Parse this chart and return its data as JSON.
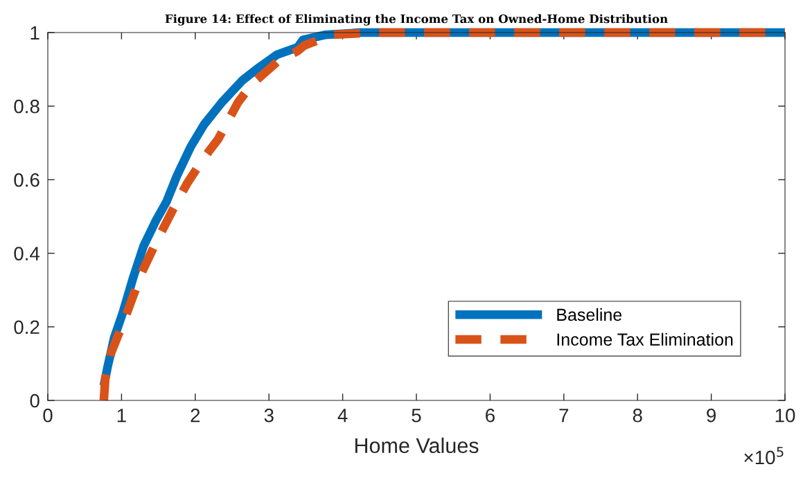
{
  "chart_data": {
    "type": "line",
    "title": "Figure 14: Effect of Eliminating the Income Tax on Owned-Home Distribution",
    "xlabel": "Home Values",
    "annotations": [
      "×10$^{5}$"
    ],
    "series": [
      {
        "name": "Baseline",
        "color": "#0072bd",
        "line_style": "solid",
        "x": [
          0.76,
          0.81,
          0.9,
          1.02,
          1.16,
          1.3,
          1.47,
          1.61,
          1.75,
          1.94,
          2.12,
          2.36,
          2.64,
          2.83,
          3.11,
          3.39,
          3.46,
          3.77,
          4.24,
          10
        ],
        "values": [
          0.04,
          0.09,
          0.17,
          0.24,
          0.335,
          0.42,
          0.49,
          0.54,
          0.61,
          0.69,
          0.75,
          0.81,
          0.87,
          0.9,
          0.94,
          0.96,
          0.98,
          0.994,
          1.0,
          1.0
        ]
      },
      {
        "name": "Income Tax Elimination",
        "color": "#d95319",
        "line_style": "dashed",
        "x": [
          0.76,
          0.78,
          0.86,
          1.04,
          1.28,
          1.47,
          1.7,
          1.89,
          2.12,
          2.31,
          2.58,
          2.77,
          3.11,
          3.39,
          3.48,
          3.86,
          4.43,
          10
        ],
        "values": [
          0,
          0.06,
          0.13,
          0.22,
          0.35,
          0.43,
          0.52,
          0.59,
          0.66,
          0.71,
          0.81,
          0.86,
          0.92,
          0.95,
          0.965,
          0.994,
          1.0,
          1.0
        ]
      }
    ],
    "xlim": [
      0,
      10
    ],
    "xticks": [
      0,
      1,
      2,
      3,
      4,
      5,
      6,
      7,
      8,
      9,
      10
    ],
    "ylim": [
      0,
      1
    ],
    "yticks": [
      0,
      0.2,
      0.4,
      0.6,
      0.8,
      1
    ],
    "grid": false,
    "legend": "bottom right",
    "marker": "none"
  }
}
